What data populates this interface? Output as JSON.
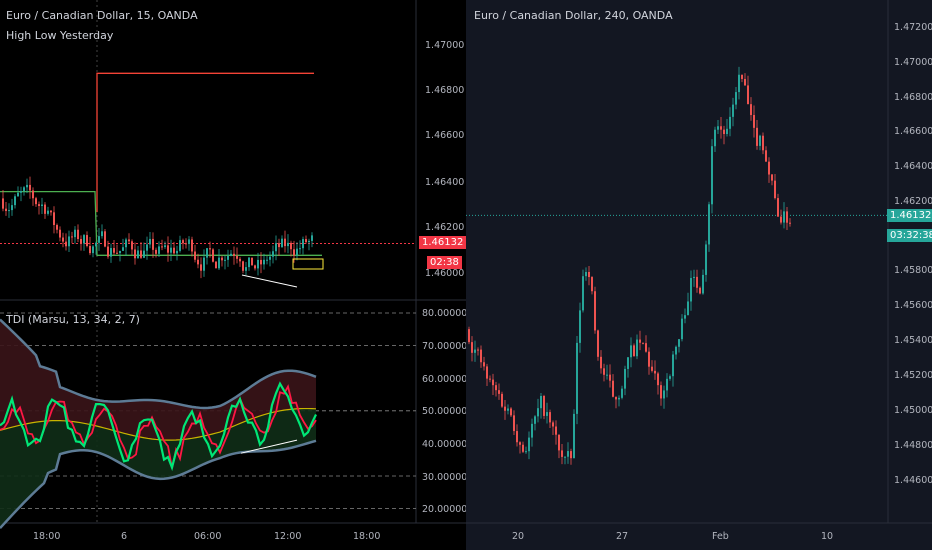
{
  "left_chart": {
    "title": "Euro / Canadian Dollar, 15, OANDA",
    "indicator": "High Low Yesterday",
    "price_ticks": [
      "1.47000",
      "1.46800",
      "1.46600",
      "1.46400",
      "1.46200",
      "1.46000"
    ],
    "price_tick_values": [
      1.47,
      1.468,
      1.466,
      1.464,
      1.462,
      1.46
    ],
    "last_price": "1.46132",
    "countdown": "02:38",
    "last_price_color": "#f23645",
    "yesterday_high": 1.4688,
    "yesterday_low": 1.4608,
    "prior_high": 1.4636,
    "tdi": {
      "label": "TDI (Marsu, 13, 34, 2, 7)",
      "ticks": [
        "80.00000",
        "70.00000",
        "60.00000",
        "50.00000",
        "40.00000",
        "30.00000",
        "20.00000"
      ],
      "tick_values": [
        80,
        70,
        60,
        50,
        40,
        30,
        20
      ]
    },
    "time_labels": [
      "18:00",
      "6",
      "06:00",
      "12:00",
      "18:00"
    ]
  },
  "right_chart": {
    "title": "Euro / Canadian Dollar, 240, OANDA",
    "price_ticks": [
      "1.47200",
      "1.47000",
      "1.46800",
      "1.46600",
      "1.46400",
      "1.46200",
      "1.45800",
      "1.45600",
      "1.45400",
      "1.45200",
      "1.45000",
      "1.44800",
      "1.44600"
    ],
    "price_tick_values": [
      1.472,
      1.47,
      1.468,
      1.466,
      1.464,
      1.462,
      1.458,
      1.456,
      1.454,
      1.452,
      1.45,
      1.448,
      1.446
    ],
    "last_price": "1.46132",
    "countdown": "03:32:38",
    "last_price_color": "#26a69a",
    "time_labels": [
      "20",
      "27",
      "Feb",
      "10"
    ]
  },
  "colors": {
    "up": "#26a69a",
    "down": "#ef5350",
    "tdi_green": "#00e676",
    "tdi_red": "#ff1744",
    "band": "#5d7b95"
  }
}
